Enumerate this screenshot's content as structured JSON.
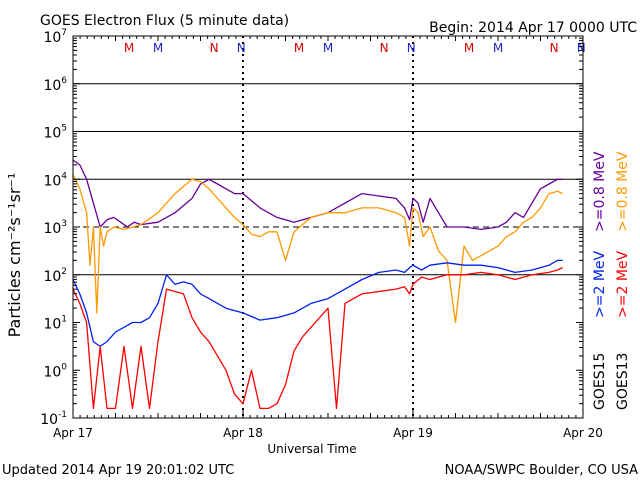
{
  "header": {
    "title": "GOES Electron Flux (5 minute data)",
    "begin": "Begin: 2014 Apr 17 0000 UTC"
  },
  "footer": {
    "updated": "Updated 2014 Apr 19 20:01:02 UTC",
    "credit": "NOAA/SWPC Boulder, CO USA"
  },
  "legend": {
    "goes15": "GOES15",
    "goes13": "GOES13",
    "ge08": ">=0.8 MeV",
    "ge2": ">=2 MeV"
  },
  "colors": {
    "goes15_ge08": "#660099",
    "goes13_ge08": "#ff9900",
    "goes15_ge2": "#0022ee",
    "goes13_ge2": "#ff0000",
    "marker_M": "#dd0000",
    "marker_N": "#dd0000",
    "marker_M2": "#2222cc",
    "marker_N2": "#2222cc"
  },
  "markers": [
    {
      "x": 0.33,
      "label": "M",
      "color": "#dd0000"
    },
    {
      "x": 0.5,
      "label": "M",
      "color": "#2222cc"
    },
    {
      "x": 0.83,
      "label": "N",
      "color": "#dd0000"
    },
    {
      "x": 0.99,
      "label": "N",
      "color": "#2222cc"
    },
    {
      "x": 1.33,
      "label": "M",
      "color": "#dd0000"
    },
    {
      "x": 1.5,
      "label": "M",
      "color": "#2222cc"
    },
    {
      "x": 1.83,
      "label": "N",
      "color": "#dd0000"
    },
    {
      "x": 1.99,
      "label": "N",
      "color": "#2222cc"
    },
    {
      "x": 2.33,
      "label": "M",
      "color": "#dd0000"
    },
    {
      "x": 2.5,
      "label": "M",
      "color": "#2222cc"
    },
    {
      "x": 2.83,
      "label": "N",
      "color": "#dd0000"
    },
    {
      "x": 2.99,
      "label": "N",
      "color": "#2222cc"
    }
  ],
  "chart_data": {
    "type": "line",
    "title": "GOES Electron Flux (5 minute data)",
    "xlabel": "Universal Time",
    "ylabel": "Particles cm⁻²s⁻¹sr⁻¹",
    "y_scale": "log",
    "xlim": [
      0,
      3
    ],
    "ylim_exp": [
      -1,
      7
    ],
    "x_ticks": [
      {
        "v": 0,
        "label": "Apr 17"
      },
      {
        "v": 1,
        "label": "Apr 18"
      },
      {
        "v": 2,
        "label": "Apr 19"
      },
      {
        "v": 3,
        "label": "Apr 20"
      }
    ],
    "y_ticks": [
      {
        "exp": -1,
        "label": "10",
        "sup": "-1"
      },
      {
        "exp": 0,
        "label": "10",
        "sup": "0"
      },
      {
        "exp": 1,
        "label": "10",
        "sup": "1"
      },
      {
        "exp": 2,
        "label": "10",
        "sup": "2"
      },
      {
        "exp": 3,
        "label": "10",
        "sup": "3"
      },
      {
        "exp": 4,
        "label": "10",
        "sup": "4"
      },
      {
        "exp": 5,
        "label": "10",
        "sup": "5"
      },
      {
        "exp": 6,
        "label": "10",
        "sup": "6"
      },
      {
        "exp": 7,
        "label": "10",
        "sup": "7"
      }
    ],
    "solid_grid_exp": [
      2,
      4,
      5,
      6
    ],
    "dashed_grid_exp": [
      3
    ],
    "day_dividers": [
      1,
      2
    ],
    "series": [
      {
        "name": "GOES15 >=0.8 MeV",
        "color": "#660099",
        "x": [
          0,
          0.04,
          0.08,
          0.12,
          0.16,
          0.2,
          0.24,
          0.28,
          0.32,
          0.36,
          0.4,
          0.5,
          0.6,
          0.7,
          0.75,
          0.8,
          0.85,
          0.9,
          0.95,
          1.0,
          1.05,
          1.1,
          1.2,
          1.3,
          1.4,
          1.5,
          1.6,
          1.7,
          1.8,
          1.9,
          1.95,
          1.98,
          2.0,
          2.03,
          2.06,
          2.1,
          2.15,
          2.2,
          2.3,
          2.4,
          2.5,
          2.55,
          2.6,
          2.65,
          2.7,
          2.75,
          2.8,
          2.85,
          2.88
        ],
        "y": [
          4.4,
          4.3,
          4.0,
          3.5,
          3.0,
          3.15,
          3.2,
          3.1,
          3.0,
          3.1,
          3.05,
          3.1,
          3.3,
          3.6,
          3.9,
          4.0,
          3.9,
          3.8,
          3.7,
          3.7,
          3.55,
          3.4,
          3.2,
          3.1,
          3.2,
          3.3,
          3.5,
          3.7,
          3.65,
          3.6,
          3.4,
          3.15,
          3.6,
          3.5,
          3.1,
          3.6,
          3.3,
          3.0,
          3.0,
          2.95,
          3.0,
          3.1,
          3.3,
          3.2,
          3.5,
          3.8,
          3.9,
          4.0,
          4.0
        ]
      },
      {
        "name": "GOES13 >=0.8 MeV",
        "color": "#ff9900",
        "x": [
          0,
          0.04,
          0.08,
          0.1,
          0.12,
          0.14,
          0.16,
          0.18,
          0.2,
          0.24,
          0.3,
          0.4,
          0.5,
          0.6,
          0.7,
          0.75,
          0.8,
          0.85,
          0.9,
          0.95,
          1.0,
          1.05,
          1.1,
          1.15,
          1.2,
          1.25,
          1.3,
          1.4,
          1.5,
          1.6,
          1.7,
          1.8,
          1.9,
          1.95,
          1.98,
          2.0,
          2.03,
          2.06,
          2.1,
          2.15,
          2.2,
          2.25,
          2.3,
          2.35,
          2.4,
          2.5,
          2.55,
          2.6,
          2.65,
          2.7,
          2.75,
          2.8,
          2.85,
          2.88
        ],
        "y": [
          4.1,
          3.8,
          3.3,
          2.2,
          3.0,
          1.2,
          3.0,
          2.6,
          2.9,
          3.0,
          2.95,
          3.05,
          3.3,
          3.7,
          4.0,
          3.95,
          3.8,
          3.6,
          3.4,
          3.2,
          3.05,
          2.85,
          2.8,
          2.9,
          2.9,
          2.3,
          2.9,
          3.2,
          3.3,
          3.3,
          3.4,
          3.4,
          3.3,
          3.2,
          2.6,
          3.4,
          3.3,
          2.8,
          3.0,
          2.5,
          2.3,
          1.0,
          2.6,
          2.3,
          2.4,
          2.6,
          2.8,
          2.9,
          3.1,
          3.2,
          3.4,
          3.7,
          3.75,
          3.7
        ]
      },
      {
        "name": "GOES15 >=2 MeV",
        "color": "#0022ee",
        "x": [
          0,
          0.04,
          0.08,
          0.12,
          0.16,
          0.2,
          0.25,
          0.3,
          0.35,
          0.4,
          0.45,
          0.5,
          0.55,
          0.6,
          0.65,
          0.7,
          0.75,
          0.8,
          0.85,
          0.9,
          0.95,
          1.0,
          1.1,
          1.2,
          1.3,
          1.4,
          1.5,
          1.6,
          1.7,
          1.8,
          1.9,
          1.95,
          1.98,
          2.0,
          2.05,
          2.1,
          2.2,
          2.3,
          2.4,
          2.5,
          2.6,
          2.7,
          2.8,
          2.85,
          2.88
        ],
        "y": [
          1.9,
          1.6,
          1.2,
          0.6,
          0.5,
          0.6,
          0.8,
          0.9,
          1.0,
          1.0,
          1.1,
          1.4,
          2.0,
          1.8,
          1.85,
          1.8,
          1.6,
          1.5,
          1.4,
          1.3,
          1.25,
          1.2,
          1.05,
          1.1,
          1.2,
          1.4,
          1.5,
          1.7,
          1.9,
          2.05,
          2.1,
          2.05,
          2.15,
          2.2,
          2.1,
          2.2,
          2.25,
          2.2,
          2.2,
          2.15,
          2.05,
          2.1,
          2.2,
          2.3,
          2.3
        ]
      },
      {
        "name": "GOES13 >=2 MeV",
        "color": "#ff0000",
        "x": [
          0,
          0.04,
          0.08,
          0.12,
          0.16,
          0.2,
          0.25,
          0.3,
          0.35,
          0.4,
          0.45,
          0.5,
          0.55,
          0.6,
          0.65,
          0.7,
          0.75,
          0.8,
          0.85,
          0.9,
          0.95,
          1.0,
          1.05,
          1.1,
          1.15,
          1.2,
          1.25,
          1.3,
          1.35,
          1.4,
          1.45,
          1.5,
          1.55,
          1.6,
          1.65,
          1.7,
          1.8,
          1.9,
          1.95,
          1.98,
          2.0,
          2.05,
          2.1,
          2.2,
          2.3,
          2.4,
          2.5,
          2.6,
          2.7,
          2.8,
          2.85,
          2.88
        ],
        "y": [
          1.7,
          1.4,
          1.0,
          -0.8,
          0.5,
          -0.8,
          -0.8,
          0.5,
          -0.8,
          0.5,
          -0.8,
          0.6,
          1.7,
          1.65,
          1.6,
          1.1,
          0.8,
          0.6,
          0.3,
          0.0,
          -0.5,
          -0.7,
          0.0,
          -0.8,
          -0.8,
          -0.7,
          -0.3,
          0.4,
          0.7,
          0.9,
          1.1,
          1.3,
          -0.8,
          1.4,
          1.5,
          1.6,
          1.65,
          1.7,
          1.75,
          1.6,
          1.8,
          1.95,
          1.9,
          2.0,
          2.0,
          2.05,
          2.0,
          1.9,
          2.0,
          2.05,
          2.1,
          2.15
        ]
      }
    ]
  }
}
